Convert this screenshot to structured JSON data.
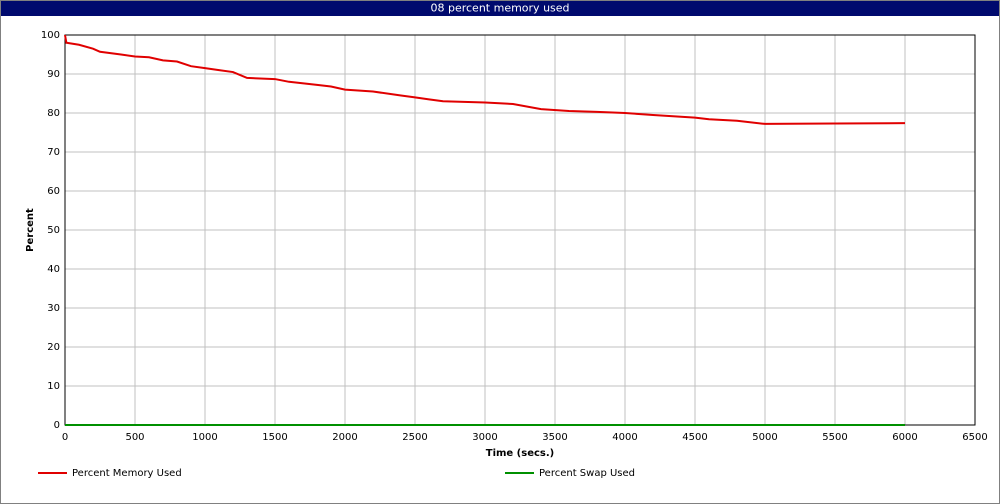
{
  "chart_data": {
    "type": "line",
    "title": "08 percent memory used",
    "x_label": "Time (secs.)",
    "y_label": "Percent",
    "x": [
      0,
      10,
      100,
      200,
      250,
      400,
      500,
      600,
      700,
      800,
      900,
      1000,
      1100,
      1200,
      1300,
      1500,
      1600,
      1800,
      1900,
      2000,
      2200,
      2400,
      2500,
      2600,
      2700,
      3000,
      3200,
      3400,
      3600,
      3800,
      4000,
      4200,
      4500,
      4600,
      4800,
      5000,
      5500,
      6000
    ],
    "series": [
      {
        "name": "Percent Memory Used",
        "color": "#e00000",
        "values": [
          100,
          98,
          97.5,
          96.5,
          95.7,
          95,
          94.5,
          94.3,
          93.5,
          93.2,
          92,
          91.5,
          91,
          90.5,
          89,
          88.7,
          88,
          87.2,
          86.8,
          86,
          85.5,
          84.5,
          84,
          83.5,
          83,
          82.7,
          82.3,
          81,
          80.5,
          80.3,
          80,
          79.5,
          78.8,
          78.4,
          78,
          77.2,
          77.3,
          77.4
        ]
      },
      {
        "name": "Percent Swap Used",
        "color": "#009000",
        "values": [
          0,
          0,
          0,
          0,
          0,
          0,
          0,
          0,
          0,
          0,
          0,
          0,
          0,
          0,
          0,
          0,
          0,
          0,
          0,
          0,
          0,
          0,
          0,
          0,
          0,
          0,
          0,
          0,
          0,
          0,
          0,
          0,
          0,
          0,
          0,
          0,
          0,
          0
        ]
      }
    ],
    "xlim": [
      0,
      6500
    ],
    "xticks": [
      0,
      500,
      1000,
      1500,
      2000,
      2500,
      3000,
      3500,
      4000,
      4500,
      5000,
      5500,
      6000,
      6500
    ],
    "ylim": [
      0,
      100
    ],
    "yticks": [
      0,
      10,
      20,
      30,
      40,
      50,
      60,
      70,
      80,
      90,
      100
    ],
    "grid": true
  }
}
